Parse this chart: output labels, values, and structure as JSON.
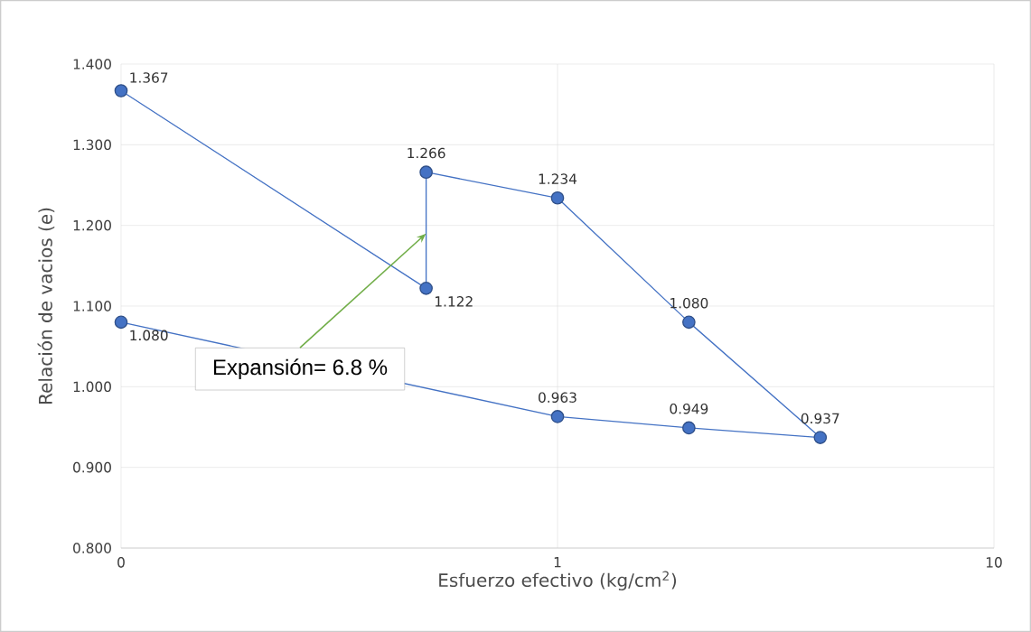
{
  "chart_data": {
    "type": "line",
    "xlabel": "Esfuerzo efectivo (kg/cm$^{2}$)",
    "ylabel": "Relación de vacios (e)",
    "x": [
      0.1,
      0.5,
      0.5,
      1,
      2,
      4,
      2,
      1,
      0.1
    ],
    "series": [
      {
        "color": "#4472c4",
        "values": [
          1.367,
          1.122,
          1.266,
          1.234,
          1.08,
          0.937,
          0.949,
          0.963,
          1.08
        ],
        "value_labels": [
          "1.367",
          "1.122",
          "1.266",
          "1.234",
          "1.080",
          "0.937",
          "0.949",
          "0.963",
          "1.080"
        ]
      }
    ],
    "log": "x",
    "xlim": [
      0.1,
      10
    ],
    "xticks": [
      {
        "value": 0.1,
        "label": "0"
      },
      1,
      10
    ],
    "ylim": [
      0.8,
      1.4
    ],
    "yticks": [
      {
        "value": 0.8,
        "label": "0.800"
      },
      {
        "value": 0.9,
        "label": "0.900"
      },
      {
        "value": 1.0,
        "label": "1.000"
      },
      {
        "value": 1.1,
        "label": "1.100"
      },
      {
        "value": 1.2,
        "label": "1.200"
      },
      {
        "value": 1.3,
        "label": "1.300"
      },
      {
        "value": 1.4,
        "label": "1.400"
      }
    ],
    "grid": true,
    "marker": "circle",
    "line_style": "solid",
    "annotations": [
      {
        "text": "Expansión= 6.8 %",
        "x": 0.5,
        "y": 1.19
      }
    ]
  }
}
